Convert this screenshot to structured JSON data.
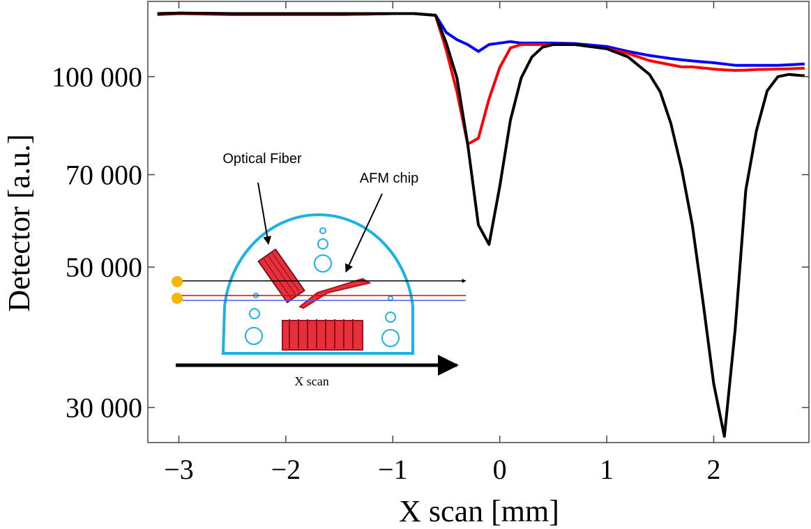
{
  "chart_data": {
    "type": "line",
    "x_label": "X scan [mm]",
    "y_label": "Detector [a.u.]",
    "annotations": [
      "Optical Fiber",
      "AFM chip",
      "X scan"
    ],
    "x": [
      -3.2,
      -3,
      -2.5,
      -2,
      -1.5,
      -1,
      -0.8,
      -0.6,
      -0.5,
      -0.4,
      -0.3,
      -0.2,
      -0.1,
      0,
      0.1,
      0.2,
      0.3,
      0.4,
      0.5,
      0.7,
      1,
      1.2,
      1.4,
      1.5,
      1.6,
      1.7,
      1.8,
      1.9,
      2,
      2.1,
      2.2,
      2.3,
      2.4,
      2.5,
      2.6,
      2.7,
      2.85
    ],
    "series": [
      {
        "color": "#0000ff",
        "values": [
          125800,
          126000,
          125800,
          125300,
          125300,
          125800,
          125800,
          125100,
          117400,
          114400,
          112400,
          109600,
          112400,
          113000,
          113600,
          113000,
          113000,
          113000,
          113000,
          112800,
          111600,
          109600,
          108000,
          107400,
          106800,
          106300,
          105900,
          105500,
          105200,
          104700,
          104200,
          104200,
          104200,
          104200,
          104200,
          104400,
          104700
        ]
      },
      {
        "color": "#ff0000",
        "values": [
          125300,
          125800,
          125300,
          125300,
          125300,
          125800,
          125800,
          125000,
          110100,
          94600,
          78200,
          79900,
          92200,
          103400,
          111000,
          112400,
          112400,
          112400,
          112400,
          112400,
          110700,
          108800,
          106000,
          105200,
          104400,
          103600,
          103600,
          103200,
          102800,
          102500,
          102300,
          102400,
          102600,
          102700,
          102800,
          102900,
          103100
        ]
      },
      {
        "color": "#000000",
        "values": [
          125800,
          126000,
          125800,
          125800,
          125800,
          125800,
          125800,
          125000,
          113000,
          99500,
          78200,
          58300,
          54300,
          67100,
          85400,
          99500,
          107400,
          111300,
          112400,
          112400,
          110700,
          107400,
          100800,
          94600,
          84300,
          71500,
          58300,
          44100,
          32700,
          27000,
          39800,
          66200,
          82200,
          95000,
          100000,
          100800,
          100300
        ]
      }
    ],
    "xlim": [
      -3.29,
      2.89
    ],
    "xticks": [
      {
        "value": -3,
        "label": "−3"
      },
      {
        "value": -2,
        "label": "−2"
      },
      {
        "value": -1,
        "label": "−1"
      },
      0,
      1,
      2
    ],
    "ylim": [
      26400,
      131500
    ],
    "yticks": [
      {
        "value": 30000,
        "label": "30 000"
      },
      {
        "value": 50000,
        "label": "50 000"
      },
      {
        "value": 70000,
        "label": "70 000"
      },
      {
        "value": 100000,
        "label": "100 000"
      }
    ],
    "y_scale": "log"
  }
}
